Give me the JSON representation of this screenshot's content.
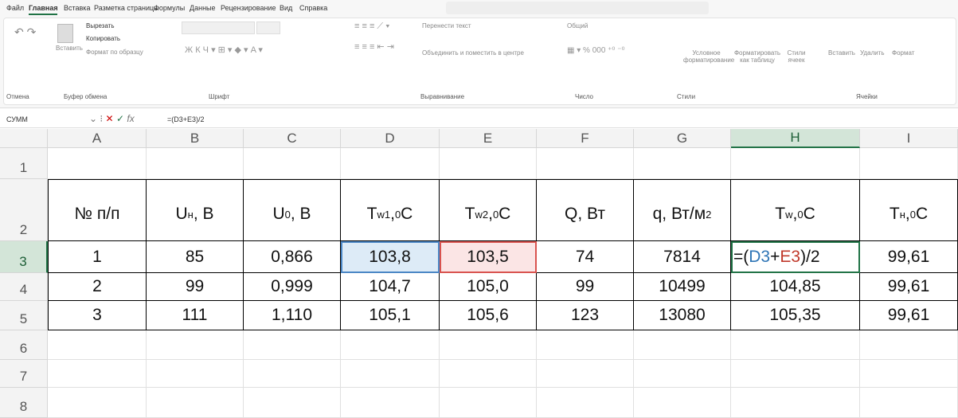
{
  "ribbon": {
    "tabs": [
      "Файл",
      "Главная",
      "Вставка",
      "Разметка страницы",
      "Формулы",
      "Данные",
      "Рецензирование",
      "Вид",
      "Справка"
    ],
    "items": {
      "paste": "Вставить",
      "cut": "Вырезать",
      "copy": "Копировать",
      "format_painter": "Формат по образцу",
      "wrap": "Перенести текст",
      "merge": "Объединить и поместить в центре",
      "number_format": "Общий",
      "conditional": "Условное форматирование",
      "as_table": "Форматировать как таблицу",
      "cell_styles": "Стили ячеек",
      "insert": "Вставить",
      "delete": "Удалить",
      "format": "Формат"
    },
    "groups": [
      "Отмена",
      "Буфер обмена",
      "Шрифт",
      "Выравнивание",
      "Число",
      "Стили",
      "Ячейки"
    ]
  },
  "formula_bar": {
    "name_box": "СУММ",
    "formula": "=(D3+E3)/2"
  },
  "sheet": {
    "columns": [
      "A",
      "B",
      "C",
      "D",
      "E",
      "F",
      "G",
      "H",
      "I"
    ],
    "row_numbers": [
      "1",
      "2",
      "3",
      "4",
      "5",
      "6",
      "7",
      "8"
    ],
    "headers": [
      [
        {
          "text": "№ п/п"
        }
      ],
      [
        {
          "text": "U"
        },
        {
          "sub": "н"
        },
        {
          "text": ", В"
        }
      ],
      [
        {
          "text": "U"
        },
        {
          "sub": "0"
        },
        {
          "text": ", В"
        }
      ],
      [
        {
          "text": "T"
        },
        {
          "sub": "w1"
        },
        {
          "text": ", "
        },
        {
          "sup": "0"
        },
        {
          "text": "C"
        }
      ],
      [
        {
          "text": "T"
        },
        {
          "sub": "w2"
        },
        {
          "text": ", "
        },
        {
          "sup": "0"
        },
        {
          "text": "C"
        }
      ],
      [
        {
          "text": "Q, Вт"
        }
      ],
      [
        {
          "text": "q, Вт/м"
        },
        {
          "sup": "2"
        }
      ],
      [
        {
          "text": "T"
        },
        {
          "sub": "w"
        },
        {
          "text": ", "
        },
        {
          "sup": "0"
        },
        {
          "text": "C"
        }
      ],
      [
        {
          "text": "T"
        },
        {
          "sub": "н"
        },
        {
          "text": ", "
        },
        {
          "sup": "0"
        },
        {
          "text": "C"
        }
      ]
    ],
    "rows": [
      [
        "1",
        "85",
        "0,866",
        "103,8",
        "103,5",
        "74",
        "7814",
        [
          {
            "text": "=("
          },
          {
            "text": "D3",
            "color": "#2e75b6"
          },
          {
            "text": "+"
          },
          {
            "text": "E3",
            "color": "#c0392b"
          },
          {
            "text": ")/2"
          }
        ],
        "99,61"
      ],
      [
        "2",
        "99",
        "0,999",
        "104,7",
        "105,0",
        "99",
        "10499",
        "104,85",
        "99,61"
      ],
      [
        "3",
        "111",
        "1,110",
        "105,1",
        "105,6",
        "123",
        "13080",
        "105,35",
        "99,61"
      ]
    ]
  }
}
